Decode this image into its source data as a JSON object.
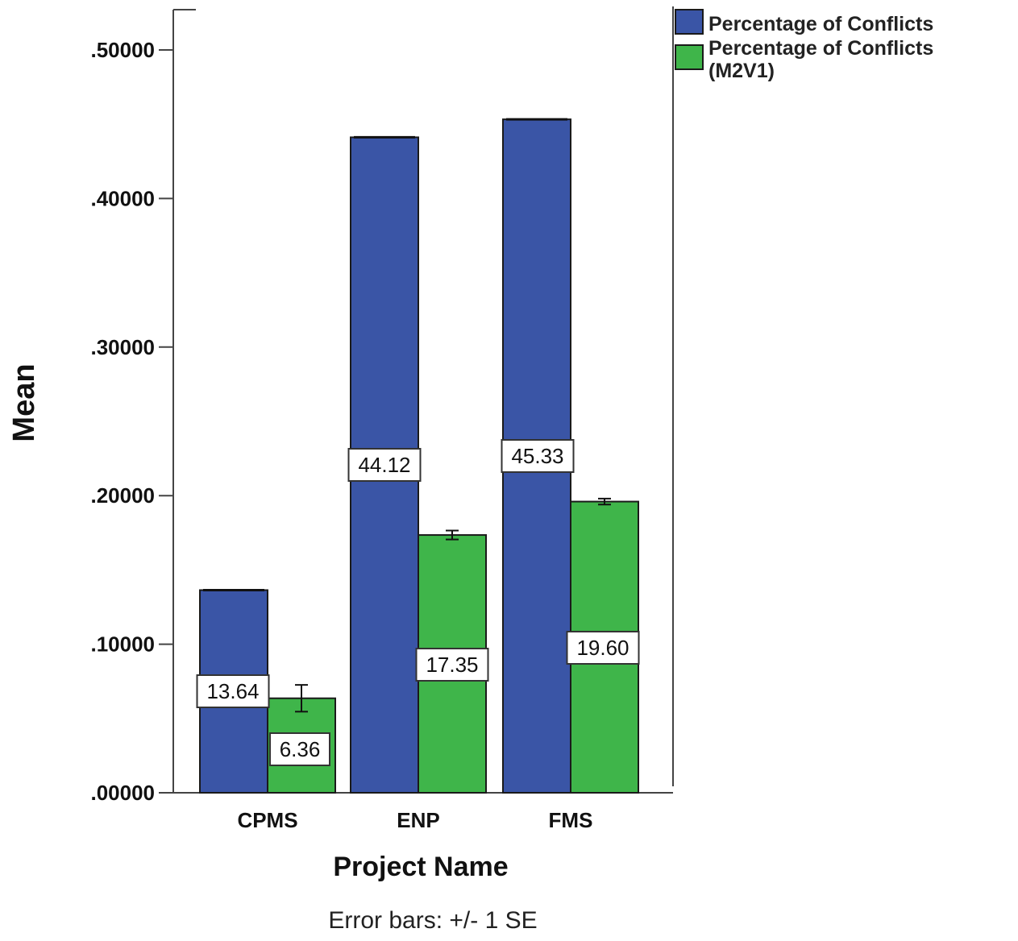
{
  "chart_data": {
    "type": "bar",
    "categories": [
      "CPMS",
      "ENP",
      "FMS"
    ],
    "series": [
      {
        "name": "Percentage of Conflicts",
        "values": [
          0.1364,
          0.4412,
          0.4533
        ],
        "labels": [
          "13.64",
          "44.12",
          "45.33"
        ],
        "error": [
          0.0,
          0.0,
          0.0
        ],
        "color": "#3a55a6"
      },
      {
        "name": "Percentage of Conflicts (M2V1)",
        "values": [
          0.0636,
          0.1735,
          0.196
        ],
        "labels": [
          "6.36",
          "17.35",
          "19.60"
        ],
        "error": [
          0.009,
          0.003,
          0.002
        ],
        "color": "#3fb54a"
      }
    ],
    "ylabel": "Mean",
    "xlabel": "Project Name",
    "ylim": [
      0,
      0.5
    ],
    "yticks": [
      ".00000",
      ".10000",
      ".20000",
      ".30000",
      ".40000",
      ".50000"
    ],
    "legend_position": "top-right",
    "footnote": "Error bars: +/- 1 SE",
    "grid": false
  }
}
